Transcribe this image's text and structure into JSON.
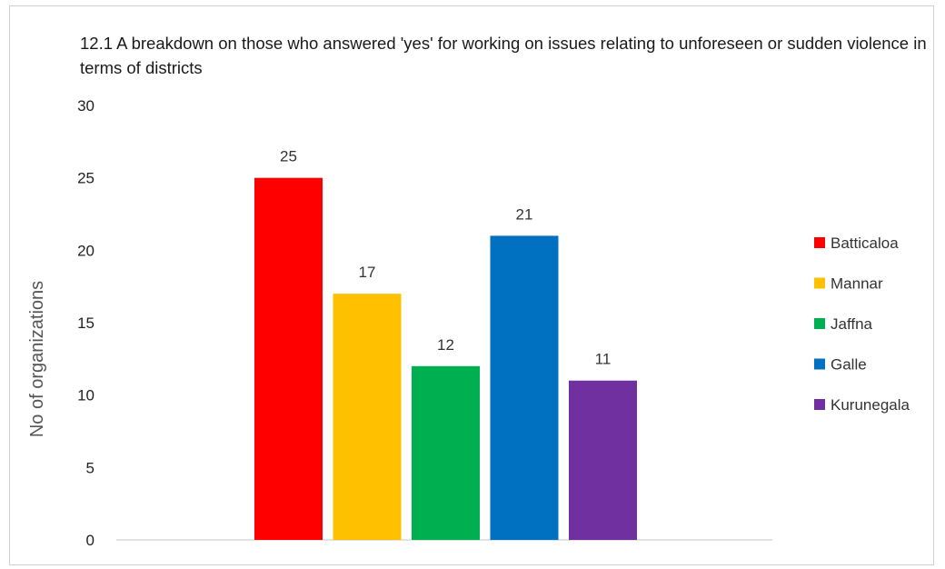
{
  "chart_data": {
    "type": "bar",
    "title": "12.1 A breakdown on those who answered 'yes' for working on issues relating to unforeseen or sudden violence in terms of districts",
    "xlabel": "",
    "ylabel": "No of organizations",
    "ylim": [
      0,
      30
    ],
    "yticks": [
      0,
      5,
      10,
      15,
      20,
      25,
      30
    ],
    "grid": false,
    "legend_position": "right",
    "series": [
      {
        "name": "Batticaloa",
        "value": 25,
        "label": "25",
        "color": "#ff0000"
      },
      {
        "name": "Mannar",
        "value": 17,
        "label": "17",
        "color": "#ffc000"
      },
      {
        "name": "Jaffna",
        "value": 12,
        "label": "12",
        "color": "#00b050"
      },
      {
        "name": "Galle",
        "value": 21,
        "label": "21",
        "color": "#0070c0"
      },
      {
        "name": "Kurunegala",
        "value": 11,
        "label": "11",
        "color": "#7030a0"
      }
    ]
  }
}
